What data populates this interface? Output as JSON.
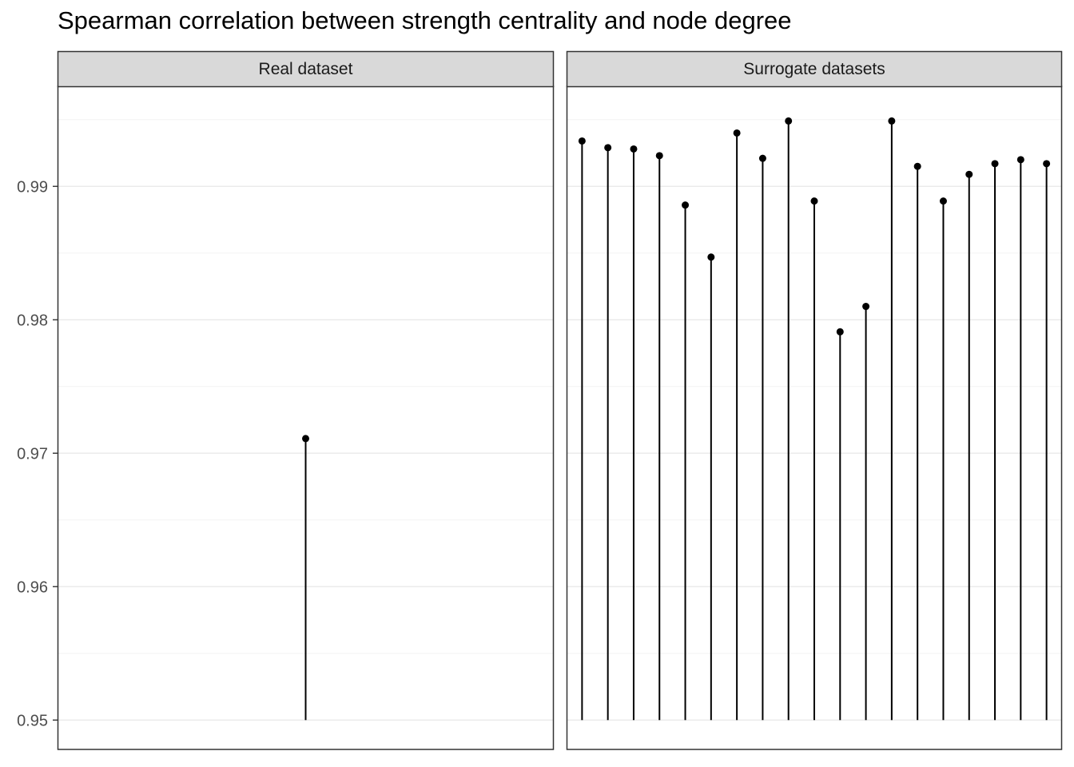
{
  "chart_data": {
    "type": "lollipop",
    "title": "Spearman correlation between strength centrality and node degree",
    "xlabel": "",
    "ylabel": "",
    "ylim": [
      0.9478,
      0.9975
    ],
    "baseline": 0.95,
    "y_ticks": [
      0.95,
      0.96,
      0.97,
      0.98,
      0.99
    ],
    "y_tick_labels": [
      "0.95",
      "0.96",
      "0.97",
      "0.98",
      "0.99"
    ],
    "grid": true,
    "legend": "none",
    "colors": {
      "point": "#000000",
      "segment": "#000000",
      "strip_bg": "#d9d9d9",
      "grid_major": "#ebebeb",
      "grid_minor": "#f4f4f4",
      "border": "#333333"
    },
    "facets": [
      {
        "label": "Real dataset",
        "series": [
          {
            "values": [
              0.9711
            ]
          }
        ]
      },
      {
        "label": "Surrogate datasets",
        "series": [
          {
            "values": [
              0.9934,
              0.9929,
              0.9928,
              0.9923,
              0.9886,
              0.9847,
              0.994,
              0.9921,
              0.9949,
              0.9889,
              0.9791,
              0.981,
              0.9949,
              0.9915,
              0.9889,
              0.9909,
              0.9917,
              0.992,
              0.9917
            ]
          }
        ]
      }
    ]
  }
}
